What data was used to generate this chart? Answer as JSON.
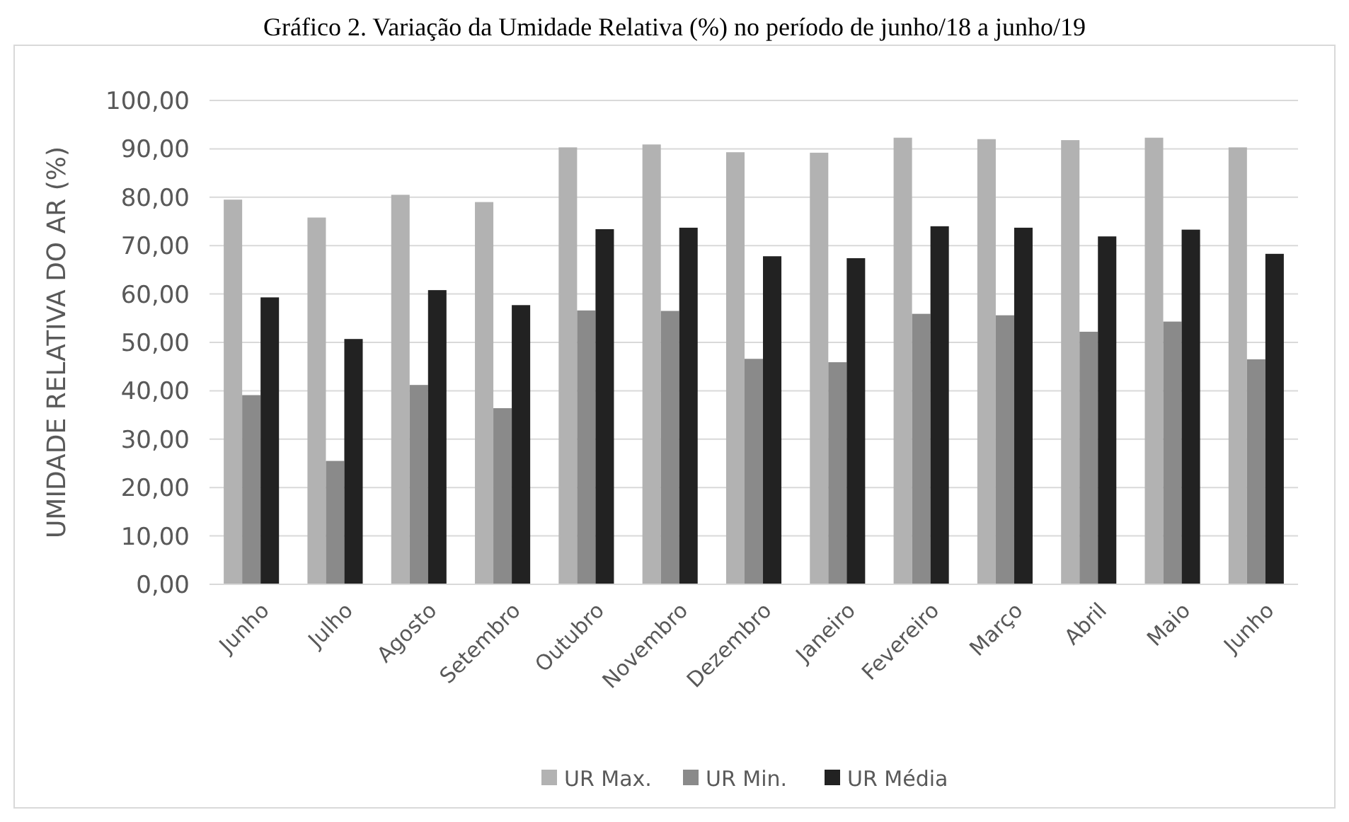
{
  "chart_data": {
    "type": "bar",
    "title": "Gráfico 2. Variação da Umidade Relativa (%) no período de junho/18 a junho/19",
    "ylabel": "UMIDADE RELATIVA DO AR (%)",
    "categories": [
      "Junho",
      "Julho",
      "Agosto",
      "Setembro",
      "Outubro",
      "Novembro",
      "Dezembro",
      "Janeiro",
      "Fevereiro",
      "Março",
      "Abril",
      "Maio",
      "Junho"
    ],
    "series": [
      {
        "name": "UR Max.",
        "color": "#b2b2b2",
        "values": [
          79.5,
          75.8,
          80.5,
          79.0,
          90.3,
          90.9,
          89.3,
          89.2,
          92.3,
          92.0,
          91.8,
          92.3,
          90.3
        ]
      },
      {
        "name": "UR Min.",
        "color": "#8a8a8a",
        "values": [
          39.1,
          25.5,
          41.2,
          36.4,
          56.6,
          56.5,
          46.6,
          45.9,
          55.9,
          55.6,
          52.2,
          54.3,
          46.5
        ]
      },
      {
        "name": "UR Média",
        "color": "#222222",
        "values": [
          59.3,
          50.7,
          60.8,
          57.7,
          73.4,
          73.7,
          67.8,
          67.4,
          74.0,
          73.7,
          71.9,
          73.3,
          68.3
        ]
      }
    ],
    "ylim": [
      0,
      100
    ],
    "yticks": [
      {
        "value": 0,
        "label": "0,00"
      },
      {
        "value": 10,
        "label": "10,00"
      },
      {
        "value": 20,
        "label": "20,00"
      },
      {
        "value": 30,
        "label": "30,00"
      },
      {
        "value": 40,
        "label": "40,00"
      },
      {
        "value": 50,
        "label": "50,00"
      },
      {
        "value": 60,
        "label": "60,00"
      },
      {
        "value": 70,
        "label": "70,00"
      },
      {
        "value": 80,
        "label": "80,00"
      },
      {
        "value": 90,
        "label": "90,00"
      },
      {
        "value": 100,
        "label": "100,00"
      }
    ],
    "grid": "y",
    "legend": "bottom"
  }
}
